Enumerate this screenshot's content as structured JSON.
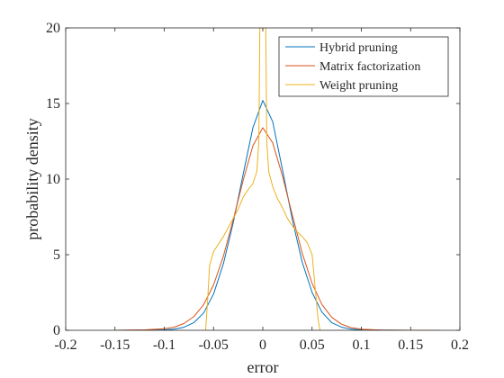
{
  "chart_data": {
    "type": "line",
    "title": "",
    "xlabel": "error",
    "ylabel": "probability density",
    "xlim": [
      -0.2,
      0.2
    ],
    "ylim": [
      0,
      20
    ],
    "xticks": [
      -0.2,
      -0.15,
      -0.1,
      -0.05,
      0,
      0.05,
      0.1,
      0.15,
      0.2
    ],
    "xtick_labels": [
      "-0.2",
      "-0.15",
      "-0.1",
      "-0.05",
      "0",
      "0.05",
      "0.1",
      "0.15",
      "0.2"
    ],
    "yticks": [
      0,
      5,
      10,
      15,
      20
    ],
    "ytick_labels": [
      "0",
      "5",
      "10",
      "15",
      "20"
    ],
    "grid": false,
    "legend_position": "top-right",
    "series": [
      {
        "name": "Hybrid pruning",
        "color": "#0072BD",
        "x": [
          -0.15,
          -0.12,
          -0.1,
          -0.09,
          -0.08,
          -0.07,
          -0.06,
          -0.05,
          -0.04,
          -0.03,
          -0.02,
          -0.01,
          0,
          0.01,
          0.02,
          0.03,
          0.04,
          0.05,
          0.06,
          0.07,
          0.08,
          0.09,
          0.1,
          0.12,
          0.15,
          0.18
        ],
        "y": [
          0,
          0.01,
          0.03,
          0.08,
          0.2,
          0.5,
          1.15,
          2.4,
          4.4,
          7.1,
          10.3,
          13.4,
          15.2,
          13.8,
          10.6,
          7.3,
          4.5,
          2.5,
          1.2,
          0.5,
          0.2,
          0.08,
          0.03,
          0.01,
          0,
          0
        ]
      },
      {
        "name": "Matrix factorization",
        "color": "#D95319",
        "x": [
          -0.15,
          -0.12,
          -0.1,
          -0.09,
          -0.08,
          -0.07,
          -0.06,
          -0.05,
          -0.04,
          -0.03,
          -0.02,
          -0.01,
          0,
          0.01,
          0.02,
          0.03,
          0.04,
          0.05,
          0.06,
          0.07,
          0.08,
          0.09,
          0.1,
          0.12,
          0.15,
          0.18
        ],
        "y": [
          0,
          0.03,
          0.1,
          0.2,
          0.45,
          0.9,
          1.7,
          3.0,
          4.9,
          7.3,
          9.9,
          12.2,
          13.4,
          12.4,
          10.2,
          7.6,
          5.1,
          3.1,
          1.7,
          0.85,
          0.4,
          0.17,
          0.07,
          0.02,
          0,
          0
        ]
      },
      {
        "name": "Weight pruning",
        "color": "#EDB120",
        "x": [
          -0.058,
          -0.056,
          -0.054,
          -0.05,
          -0.045,
          -0.04,
          -0.035,
          -0.03,
          -0.025,
          -0.02,
          -0.015,
          -0.01,
          -0.006,
          -0.004,
          -0.003,
          -0.002,
          -0.001,
          0,
          0.001,
          0.002,
          0.003,
          0.004,
          0.006,
          0.01,
          0.015,
          0.02,
          0.025,
          0.03,
          0.035,
          0.04,
          0.045,
          0.05,
          0.054,
          0.056,
          0.058
        ],
        "y": [
          0,
          2.0,
          4.3,
          5.2,
          5.7,
          6.2,
          6.8,
          7.4,
          8.0,
          8.8,
          9.3,
          9.7,
          10.5,
          12.5,
          20,
          20,
          20,
          20,
          20,
          20,
          20,
          12.5,
          10.5,
          9.5,
          8.7,
          8.1,
          7.4,
          6.9,
          6.5,
          6.2,
          5.8,
          5.0,
          2.2,
          0.8,
          0
        ]
      }
    ]
  }
}
